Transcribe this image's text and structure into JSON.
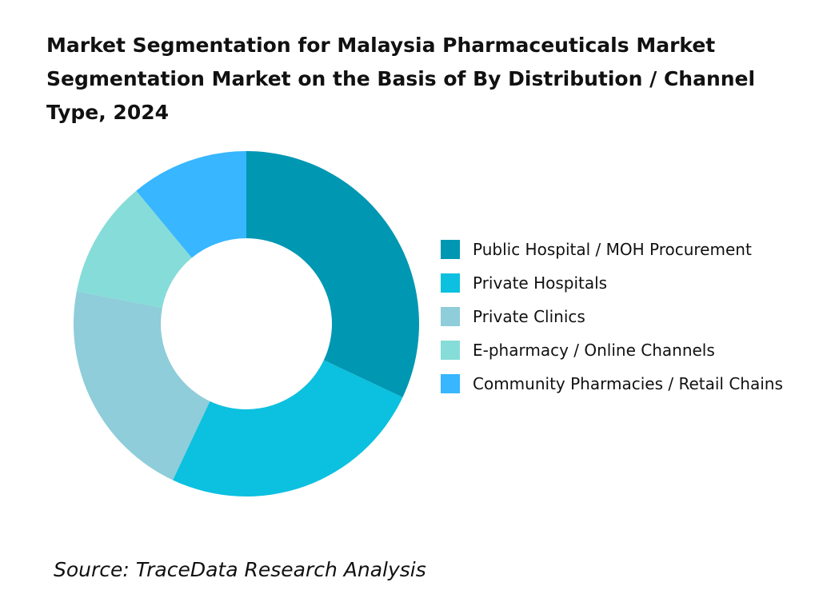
{
  "chart_data": {
    "type": "donut",
    "title": "Market Segmentation for Malaysia Pharmaceuticals Market Segmentation Market on the Basis of By Distribution / Channel Type, 2024",
    "categories": [
      "Public Hospital / MOH Procurement",
      "Private Hospitals",
      "Private Clinics",
      "E-pharmacy / Online Channels",
      "Community Pharmacies / Retail Chains"
    ],
    "values": [
      32,
      25,
      21,
      11,
      11
    ],
    "colors": [
      "#0097b2",
      "#0cc0df",
      "#8ecdd9",
      "#86dcd8",
      "#38b6ff"
    ],
    "source": "Source: TraceData Research Analysis"
  }
}
